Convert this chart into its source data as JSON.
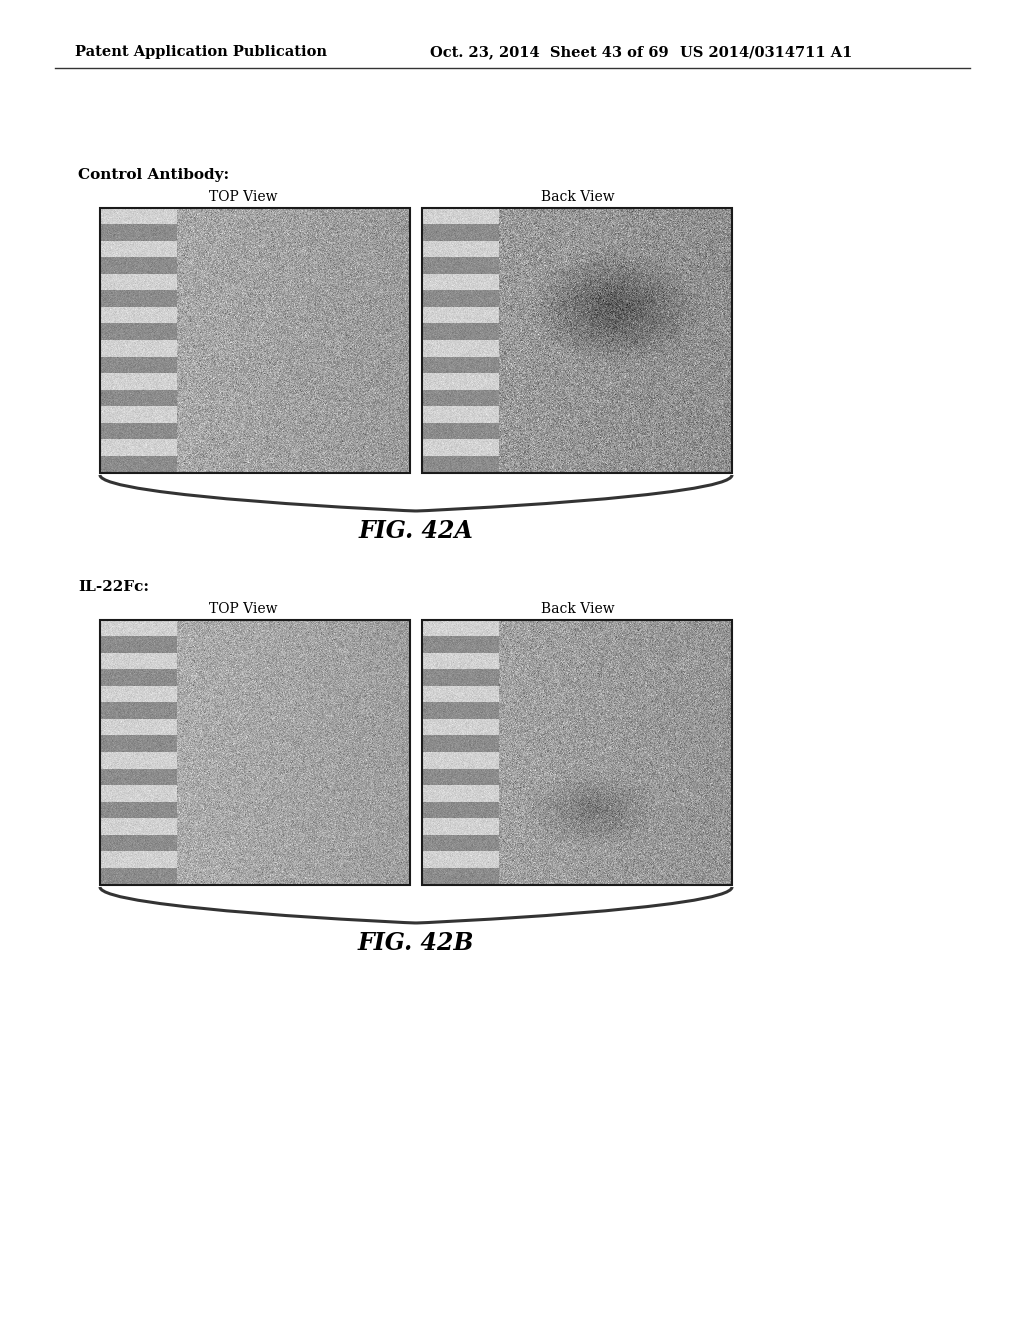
{
  "bg_color": "#ffffff",
  "header_text_left": "Patent Application Publication",
  "header_text_mid": "Oct. 23, 2014  Sheet 43 of 69",
  "header_text_right": "US 2014/0314711 A1",
  "header_fontsize": 10.5,
  "section_a": {
    "label": "Control Antibody:",
    "label_fontsize": 11,
    "top_view_label": "TOP View",
    "back_view_label": "Back View",
    "fig_label": "FIG. 42A"
  },
  "section_b": {
    "label": "IL-22Fc:",
    "label_fontsize": 11,
    "top_view_label": "TOP View",
    "back_view_label": "Back View",
    "fig_label": "FIG. 42B"
  }
}
